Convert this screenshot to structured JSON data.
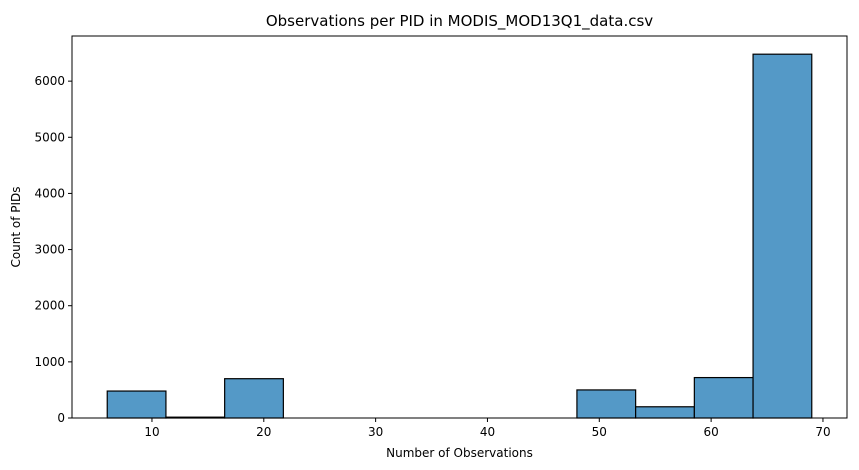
{
  "chart_data": {
    "type": "bar",
    "title": "Observations per PID in MODIS_MOD13Q1_data.csv",
    "xlabel": "Number of Observations",
    "ylabel": "Count of PIDs",
    "bar_color": "#5499c7",
    "bins": [
      {
        "x0": 6.0,
        "x1": 11.25,
        "count": 480
      },
      {
        "x0": 11.25,
        "x1": 16.5,
        "count": 15
      },
      {
        "x0": 16.5,
        "x1": 21.75,
        "count": 700
      },
      {
        "x0": 21.75,
        "x1": 27.0,
        "count": 0
      },
      {
        "x0": 27.0,
        "x1": 32.25,
        "count": 0
      },
      {
        "x0": 32.25,
        "x1": 37.5,
        "count": 0
      },
      {
        "x0": 37.5,
        "x1": 42.75,
        "count": 0
      },
      {
        "x0": 42.75,
        "x1": 48.0,
        "count": 0
      },
      {
        "x0": 48.0,
        "x1": 53.25,
        "count": 500
      },
      {
        "x0": 53.25,
        "x1": 58.5,
        "count": 200
      },
      {
        "x0": 58.5,
        "x1": 63.75,
        "count": 720
      },
      {
        "x0": 63.75,
        "x1": 69.0,
        "count": 6480
      }
    ],
    "xlim": [
      2.85,
      72.15
    ],
    "ylim": [
      0,
      6804
    ],
    "x_ticks": [
      "10",
      "20",
      "30",
      "40",
      "50",
      "60",
      "70"
    ],
    "y_ticks": [
      "0",
      "1000",
      "2000",
      "3000",
      "4000",
      "5000",
      "6000"
    ],
    "grid": false
  }
}
